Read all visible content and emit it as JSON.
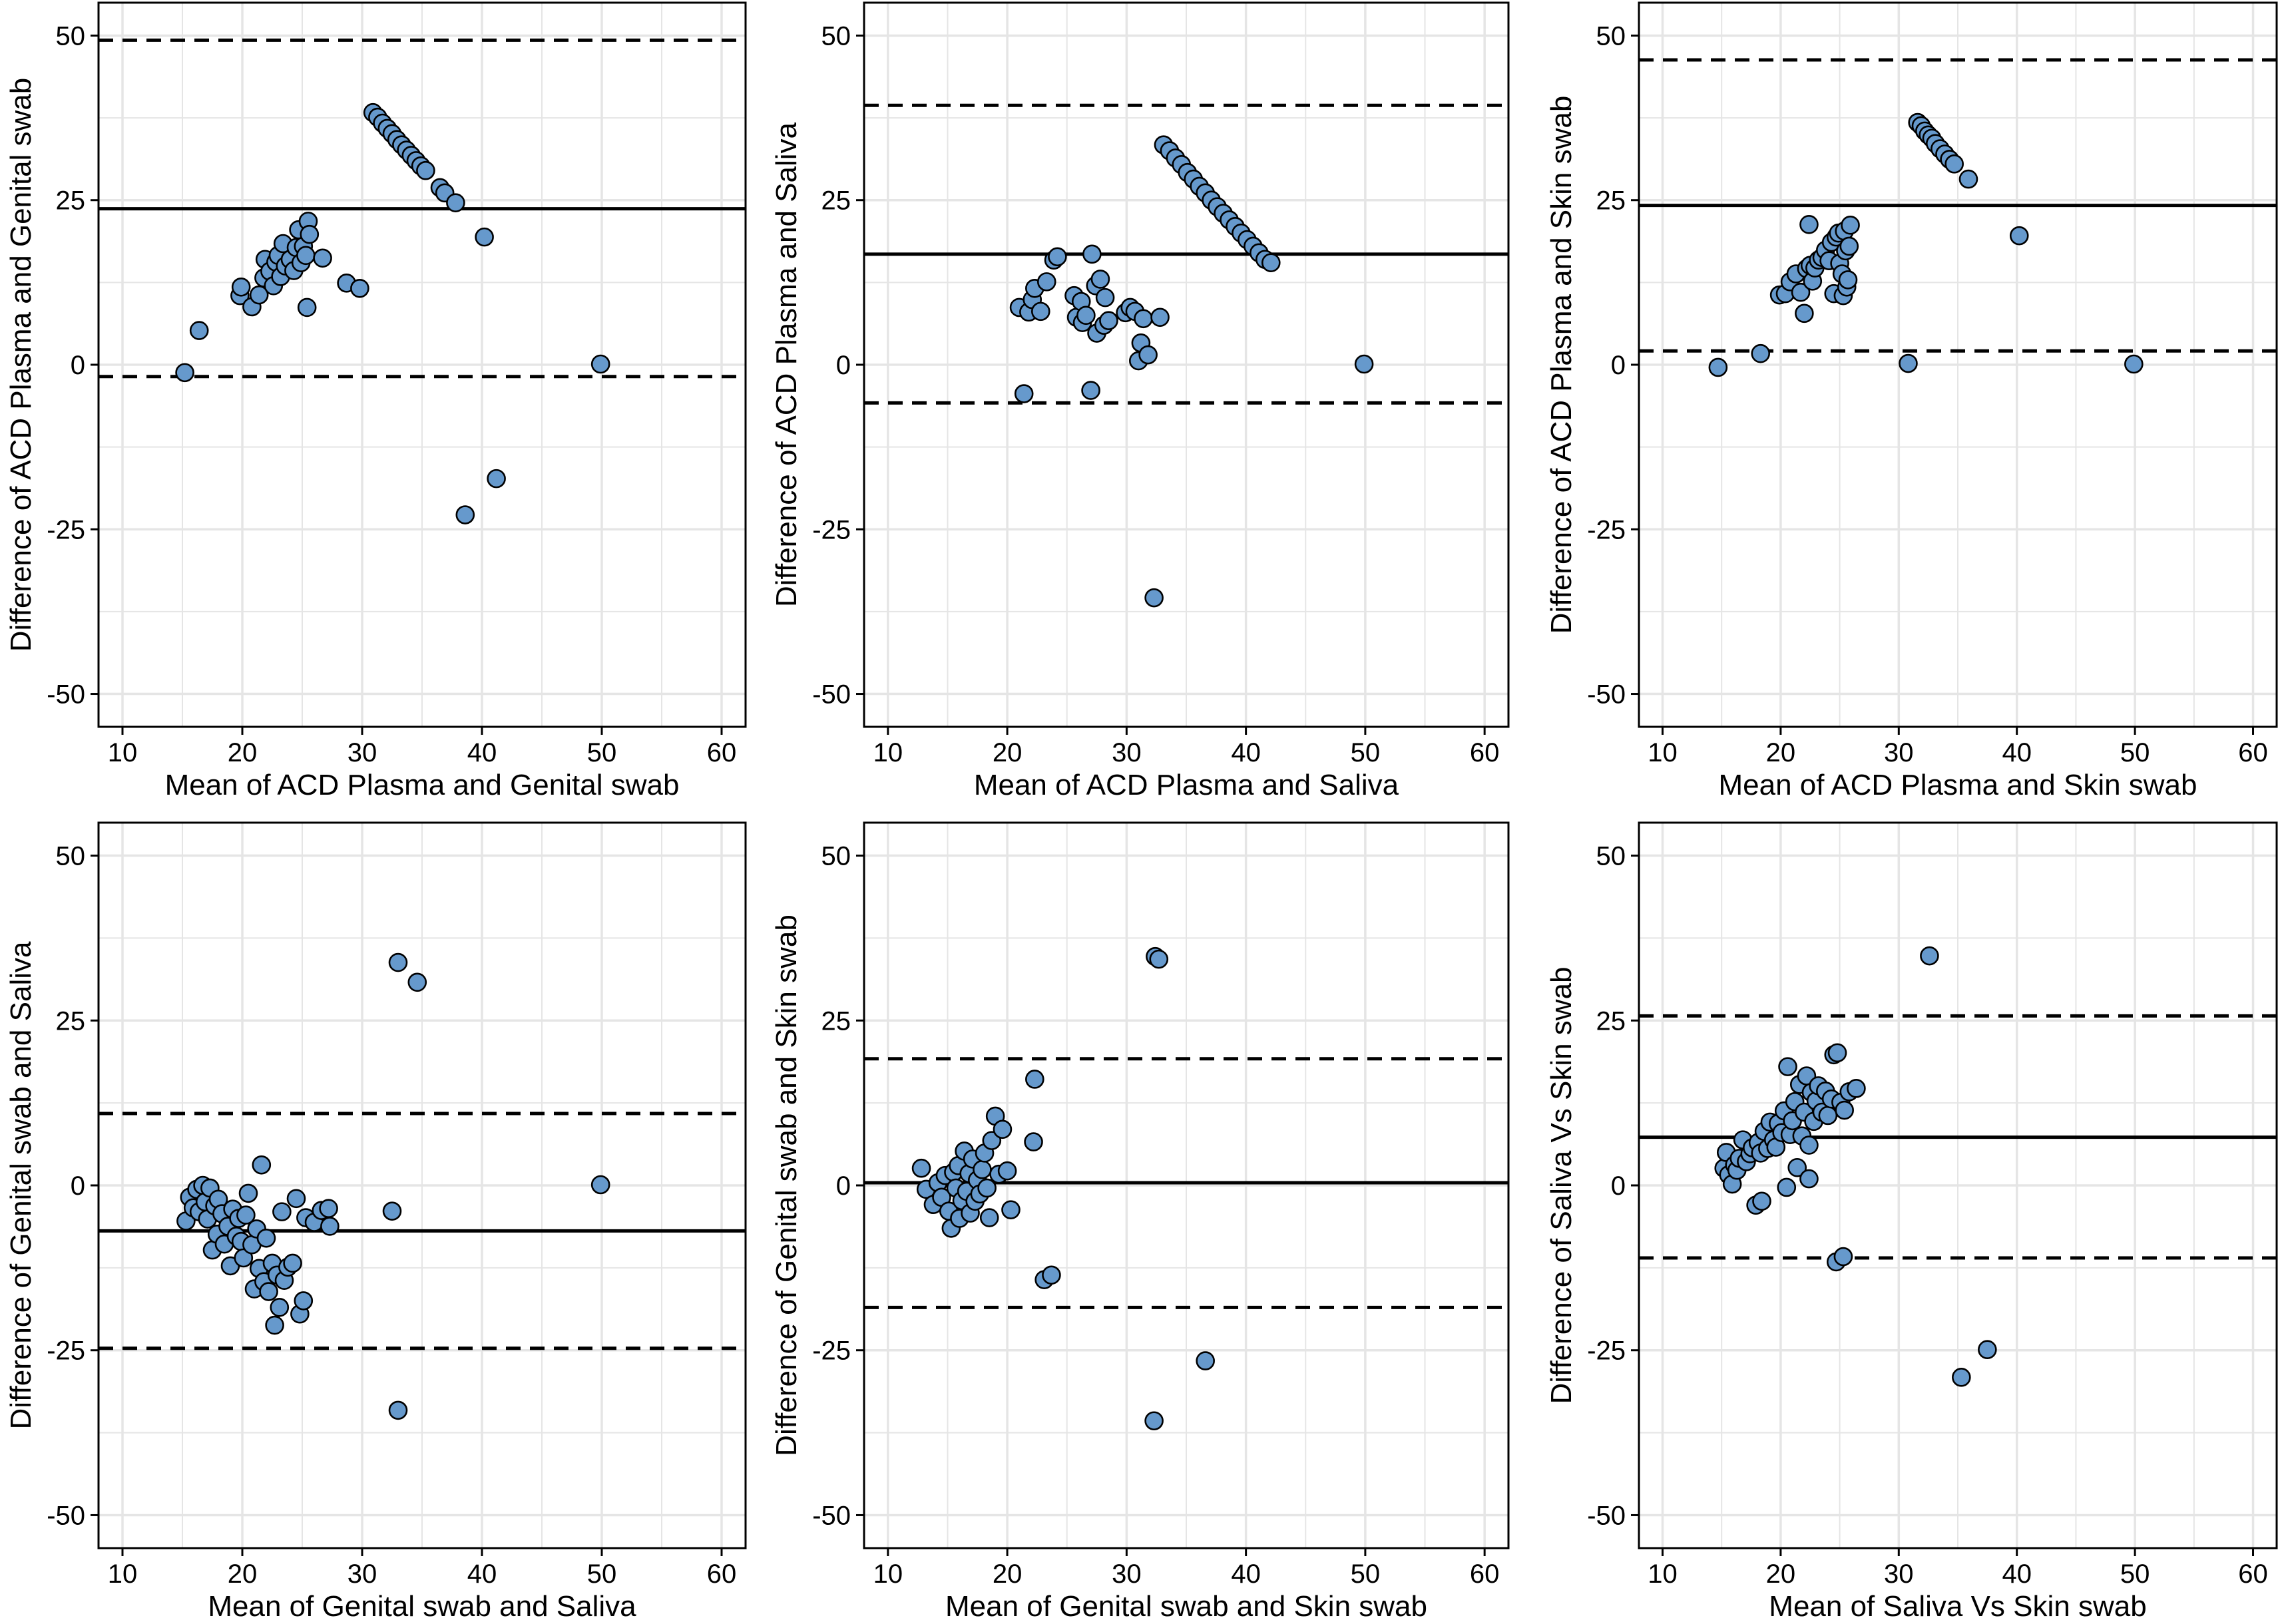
{
  "style": {
    "point_fill": "#6699cc",
    "point_stroke": "#000000",
    "grid_color": "#e5e5e5",
    "line_color": "#000000",
    "background": "#ffffff"
  },
  "chart_data": [
    {
      "type": "scatter",
      "xlabel": "Mean of ACD Plasma and Genital swab",
      "ylabel": "Difference of ACD Plasma and Genital swab",
      "xlim": [
        8,
        62
      ],
      "ylim": [
        -55,
        55
      ],
      "xticks": [
        10,
        20,
        30,
        40,
        50,
        60
      ],
      "yticks": [
        -50,
        -25,
        0,
        25,
        50
      ],
      "grid": true,
      "mean_diff": 23.7,
      "upper_loa": 49.3,
      "lower_loa": -1.8,
      "points": [
        [
          15.2,
          -1.2
        ],
        [
          16.4,
          5.2
        ],
        [
          19.8,
          10.5
        ],
        [
          19.9,
          11.8
        ],
        [
          20.8,
          8.8
        ],
        [
          21.4,
          10.6
        ],
        [
          21.8,
          13.2
        ],
        [
          21.9,
          16.0
        ],
        [
          22.3,
          14.2
        ],
        [
          22.6,
          12.0
        ],
        [
          22.8,
          15.6
        ],
        [
          23.0,
          16.6
        ],
        [
          23.2,
          13.4
        ],
        [
          23.4,
          18.4
        ],
        [
          23.6,
          15.0
        ],
        [
          24.0,
          16.0
        ],
        [
          24.3,
          14.3
        ],
        [
          24.5,
          17.8
        ],
        [
          24.7,
          20.5
        ],
        [
          24.9,
          15.5
        ],
        [
          25.1,
          18.0
        ],
        [
          25.3,
          16.6
        ],
        [
          25.5,
          21.8
        ],
        [
          25.6,
          19.8
        ],
        [
          25.4,
          8.7
        ],
        [
          26.7,
          16.2
        ],
        [
          28.7,
          12.4
        ],
        [
          29.8,
          11.6
        ],
        [
          30.9,
          38.3
        ],
        [
          31.3,
          37.6
        ],
        [
          31.7,
          36.7
        ],
        [
          32.1,
          35.9
        ],
        [
          32.5,
          35.1
        ],
        [
          32.9,
          34.2
        ],
        [
          33.3,
          33.4
        ],
        [
          33.7,
          32.6
        ],
        [
          34.1,
          31.8
        ],
        [
          34.5,
          31.0
        ],
        [
          34.9,
          30.2
        ],
        [
          35.3,
          29.5
        ],
        [
          36.5,
          26.9
        ],
        [
          36.9,
          26.1
        ],
        [
          37.8,
          24.6
        ],
        [
          40.2,
          19.4
        ],
        [
          38.6,
          -22.8
        ],
        [
          41.2,
          -17.3
        ],
        [
          49.9,
          0.1
        ]
      ]
    },
    {
      "type": "scatter",
      "xlabel": "Mean of ACD Plasma and Saliva",
      "ylabel": "Difference of ACD Plasma and Saliva",
      "xlim": [
        8,
        62
      ],
      "ylim": [
        -55,
        55
      ],
      "xticks": [
        10,
        20,
        30,
        40,
        50,
        60
      ],
      "yticks": [
        -50,
        -25,
        0,
        25,
        50
      ],
      "grid": true,
      "mean_diff": 16.8,
      "upper_loa": 39.4,
      "lower_loa": -5.8,
      "points": [
        [
          21.0,
          8.7
        ],
        [
          21.4,
          -4.4
        ],
        [
          21.8,
          8.0
        ],
        [
          22.1,
          9.9
        ],
        [
          22.3,
          11.6
        ],
        [
          22.8,
          8.1
        ],
        [
          23.3,
          12.6
        ],
        [
          23.9,
          15.9
        ],
        [
          24.2,
          16.4
        ],
        [
          25.6,
          10.5
        ],
        [
          25.8,
          7.2
        ],
        [
          26.2,
          9.6
        ],
        [
          26.3,
          6.4
        ],
        [
          26.6,
          7.5
        ],
        [
          27.0,
          -3.9
        ],
        [
          27.1,
          16.8
        ],
        [
          27.4,
          12.0
        ],
        [
          27.5,
          4.8
        ],
        [
          27.8,
          13.0
        ],
        [
          28.1,
          6.0
        ],
        [
          28.2,
          10.2
        ],
        [
          28.5,
          6.7
        ],
        [
          29.9,
          7.9
        ],
        [
          30.3,
          8.7
        ],
        [
          30.7,
          8.1
        ],
        [
          31.0,
          0.6
        ],
        [
          31.2,
          3.3
        ],
        [
          31.4,
          7.0
        ],
        [
          31.8,
          1.5
        ],
        [
          32.3,
          -35.4
        ],
        [
          32.8,
          7.2
        ],
        [
          33.1,
          33.4
        ],
        [
          33.6,
          32.5
        ],
        [
          34.1,
          31.4
        ],
        [
          34.6,
          30.4
        ],
        [
          35.1,
          29.2
        ],
        [
          35.6,
          28.2
        ],
        [
          36.1,
          27.1
        ],
        [
          36.6,
          26.1
        ],
        [
          37.1,
          25.0
        ],
        [
          37.6,
          24.0
        ],
        [
          38.1,
          23.0
        ],
        [
          38.6,
          22.0
        ],
        [
          39.1,
          21.0
        ],
        [
          39.6,
          20.0
        ],
        [
          40.1,
          19.0
        ],
        [
          40.6,
          18.0
        ],
        [
          41.1,
          17.0
        ],
        [
          41.6,
          16.0
        ],
        [
          42.1,
          15.5
        ],
        [
          49.9,
          0.1
        ]
      ]
    },
    {
      "type": "scatter",
      "xlabel": "Mean of ACD Plasma and Skin swab",
      "ylabel": "Difference of ACD Plasma and Skin swab",
      "xlim": [
        8,
        62
      ],
      "ylim": [
        -55,
        55
      ],
      "xticks": [
        10,
        20,
        30,
        40,
        50,
        60
      ],
      "yticks": [
        -50,
        -25,
        0,
        25,
        50
      ],
      "grid": true,
      "mean_diff": 24.2,
      "upper_loa": 46.3,
      "lower_loa": 2.1,
      "points": [
        [
          14.7,
          -0.4
        ],
        [
          18.3,
          1.7
        ],
        [
          19.9,
          10.6
        ],
        [
          20.4,
          10.8
        ],
        [
          20.8,
          12.6
        ],
        [
          21.3,
          13.8
        ],
        [
          21.7,
          11.0
        ],
        [
          22.0,
          7.8
        ],
        [
          22.2,
          14.6
        ],
        [
          22.4,
          21.3
        ],
        [
          22.5,
          15.1
        ],
        [
          22.7,
          12.7
        ],
        [
          22.9,
          14.7
        ],
        [
          23.2,
          15.9
        ],
        [
          23.5,
          16.3
        ],
        [
          23.8,
          17.4
        ],
        [
          24.1,
          15.8
        ],
        [
          24.3,
          18.6
        ],
        [
          24.5,
          10.8
        ],
        [
          24.7,
          19.4
        ],
        [
          24.9,
          20.0
        ],
        [
          25.0,
          15.4
        ],
        [
          25.2,
          13.8
        ],
        [
          25.3,
          10.5
        ],
        [
          25.4,
          20.3
        ],
        [
          25.5,
          17.3
        ],
        [
          25.6,
          11.8
        ],
        [
          25.7,
          12.9
        ],
        [
          25.8,
          18.0
        ],
        [
          25.9,
          21.2
        ],
        [
          31.6,
          36.8
        ],
        [
          31.9,
          36.3
        ],
        [
          32.2,
          35.5
        ],
        [
          32.5,
          34.9
        ],
        [
          32.8,
          34.4
        ],
        [
          33.1,
          33.6
        ],
        [
          33.5,
          32.8
        ],
        [
          33.9,
          32.0
        ],
        [
          34.3,
          31.2
        ],
        [
          34.7,
          30.5
        ],
        [
          35.9,
          28.2
        ],
        [
          30.8,
          0.2
        ],
        [
          40.2,
          19.6
        ],
        [
          49.9,
          0.1
        ]
      ]
    },
    {
      "type": "scatter",
      "xlabel": "Mean of Genital swab and Saliva",
      "ylabel": "Difference of Genital swab and Saliva",
      "xlim": [
        8,
        62
      ],
      "ylim": [
        -55,
        55
      ],
      "xticks": [
        10,
        20,
        30,
        40,
        50,
        60
      ],
      "yticks": [
        -50,
        -25,
        0,
        25,
        50
      ],
      "grid": true,
      "mean_diff": -6.9,
      "upper_loa": 10.9,
      "lower_loa": -24.7,
      "points": [
        [
          15.3,
          -5.4
        ],
        [
          15.6,
          -1.8
        ],
        [
          15.9,
          -3.4
        ],
        [
          16.2,
          -0.6
        ],
        [
          16.4,
          -4.0
        ],
        [
          16.7,
          0.0
        ],
        [
          16.9,
          -2.5
        ],
        [
          17.1,
          -5.1
        ],
        [
          17.3,
          -0.4
        ],
        [
          17.5,
          -9.8
        ],
        [
          17.7,
          -3.1
        ],
        [
          17.9,
          -7.4
        ],
        [
          18.0,
          -2.1
        ],
        [
          18.3,
          -4.3
        ],
        [
          18.5,
          -8.9
        ],
        [
          18.8,
          -6.2
        ],
        [
          19.0,
          -12.2
        ],
        [
          19.2,
          -3.6
        ],
        [
          19.5,
          -7.7
        ],
        [
          19.7,
          -5.0
        ],
        [
          19.9,
          -8.5
        ],
        [
          20.1,
          -11.0
        ],
        [
          20.3,
          -4.5
        ],
        [
          20.5,
          -1.2
        ],
        [
          20.8,
          -9.0
        ],
        [
          21.0,
          -15.7
        ],
        [
          21.2,
          -6.6
        ],
        [
          21.4,
          -12.6
        ],
        [
          21.6,
          3.1
        ],
        [
          21.8,
          -14.6
        ],
        [
          22.0,
          -8.0
        ],
        [
          22.2,
          -16.1
        ],
        [
          22.5,
          -11.8
        ],
        [
          22.7,
          -21.2
        ],
        [
          22.9,
          -13.6
        ],
        [
          23.1,
          -18.5
        ],
        [
          23.3,
          -4.0
        ],
        [
          23.5,
          -14.4
        ],
        [
          23.8,
          -12.4
        ],
        [
          24.2,
          -11.8
        ],
        [
          24.5,
          -2.0
        ],
        [
          24.8,
          -19.5
        ],
        [
          25.1,
          -17.5
        ],
        [
          25.3,
          -4.9
        ],
        [
          26.0,
          -5.6
        ],
        [
          26.6,
          -3.8
        ],
        [
          27.2,
          -3.5
        ],
        [
          27.3,
          -6.2
        ],
        [
          32.5,
          -3.9
        ],
        [
          33.0,
          33.8
        ],
        [
          34.6,
          30.8
        ],
        [
          33.0,
          -34.1
        ],
        [
          49.9,
          0.1
        ]
      ]
    },
    {
      "type": "scatter",
      "xlabel": "Mean of Genital swab and Skin swab",
      "ylabel": "Difference of Genital swab and Skin swab",
      "xlim": [
        8,
        62
      ],
      "ylim": [
        -55,
        55
      ],
      "xticks": [
        10,
        20,
        30,
        40,
        50,
        60
      ],
      "yticks": [
        -50,
        -25,
        0,
        25,
        50
      ],
      "grid": true,
      "mean_diff": 0.4,
      "upper_loa": 19.2,
      "lower_loa": -18.5,
      "points": [
        [
          12.8,
          2.6
        ],
        [
          13.2,
          -0.6
        ],
        [
          13.8,
          -2.9
        ],
        [
          14.2,
          0.4
        ],
        [
          14.5,
          -1.8
        ],
        [
          14.8,
          1.5
        ],
        [
          15.1,
          -3.9
        ],
        [
          15.3,
          -6.5
        ],
        [
          15.5,
          2.0
        ],
        [
          15.7,
          -0.4
        ],
        [
          15.9,
          3.0
        ],
        [
          16.0,
          -5.0
        ],
        [
          16.2,
          -2.3
        ],
        [
          16.4,
          5.2
        ],
        [
          16.6,
          -0.9
        ],
        [
          16.8,
          1.8
        ],
        [
          16.9,
          -4.2
        ],
        [
          17.1,
          4.0
        ],
        [
          17.3,
          -2.4
        ],
        [
          17.5,
          0.8
        ],
        [
          17.7,
          -1.3
        ],
        [
          17.9,
          2.4
        ],
        [
          18.1,
          4.9
        ],
        [
          18.3,
          -0.4
        ],
        [
          18.5,
          -4.9
        ],
        [
          18.7,
          6.8
        ],
        [
          19.0,
          10.5
        ],
        [
          19.3,
          1.7
        ],
        [
          19.6,
          8.5
        ],
        [
          20.3,
          -3.7
        ],
        [
          20.0,
          2.2
        ],
        [
          22.3,
          16.1
        ],
        [
          22.2,
          6.6
        ],
        [
          23.1,
          -14.3
        ],
        [
          23.7,
          -13.6
        ],
        [
          32.4,
          34.7
        ],
        [
          32.7,
          34.3
        ],
        [
          32.3,
          -35.7
        ],
        [
          36.6,
          -26.6
        ]
      ]
    },
    {
      "type": "scatter",
      "xlabel": "Mean of Saliva Vs Skin swab",
      "ylabel": "Difference of Saliva Vs Skin swab",
      "xlim": [
        8,
        62
      ],
      "ylim": [
        -55,
        55
      ],
      "xticks": [
        10,
        20,
        30,
        40,
        50,
        60
      ],
      "yticks": [
        -50,
        -25,
        0,
        25,
        50
      ],
      "grid": true,
      "mean_diff": 7.3,
      "upper_loa": 25.7,
      "lower_loa": -11.0,
      "points": [
        [
          15.2,
          2.6
        ],
        [
          15.4,
          5.0
        ],
        [
          15.6,
          1.6
        ],
        [
          15.9,
          0.2
        ],
        [
          16.1,
          3.1
        ],
        [
          16.3,
          2.3
        ],
        [
          16.5,
          4.1
        ],
        [
          16.8,
          6.9
        ],
        [
          17.1,
          3.6
        ],
        [
          17.4,
          4.8
        ],
        [
          17.6,
          5.7
        ],
        [
          17.9,
          -3.0
        ],
        [
          18.1,
          6.5
        ],
        [
          18.3,
          4.9
        ],
        [
          18.4,
          -2.4
        ],
        [
          18.6,
          8.2
        ],
        [
          18.9,
          5.6
        ],
        [
          19.1,
          9.6
        ],
        [
          19.4,
          6.9
        ],
        [
          19.6,
          5.8
        ],
        [
          19.8,
          9.4
        ],
        [
          20.1,
          8.0
        ],
        [
          20.3,
          11.3
        ],
        [
          20.5,
          -0.3
        ],
        [
          20.6,
          18.0
        ],
        [
          20.8,
          7.7
        ],
        [
          21.0,
          9.8
        ],
        [
          21.2,
          12.7
        ],
        [
          21.4,
          2.7
        ],
        [
          21.6,
          15.3
        ],
        [
          21.8,
          7.5
        ],
        [
          22.0,
          11.1
        ],
        [
          22.2,
          16.6
        ],
        [
          22.4,
          6.1
        ],
        [
          22.6,
          14.1
        ],
        [
          22.8,
          9.7
        ],
        [
          23.0,
          12.8
        ],
        [
          23.2,
          15.1
        ],
        [
          23.5,
          11.1
        ],
        [
          23.8,
          14.3
        ],
        [
          24.0,
          10.6
        ],
        [
          24.3,
          13.1
        ],
        [
          24.5,
          19.8
        ],
        [
          24.8,
          20.1
        ],
        [
          25.1,
          12.6
        ],
        [
          25.4,
          11.4
        ],
        [
          25.8,
          14.2
        ],
        [
          26.4,
          14.7
        ],
        [
          22.4,
          1.0
        ],
        [
          24.7,
          -11.6
        ],
        [
          25.3,
          -10.8
        ],
        [
          32.6,
          34.8
        ],
        [
          35.3,
          -29.1
        ],
        [
          37.5,
          -24.9
        ]
      ]
    }
  ]
}
